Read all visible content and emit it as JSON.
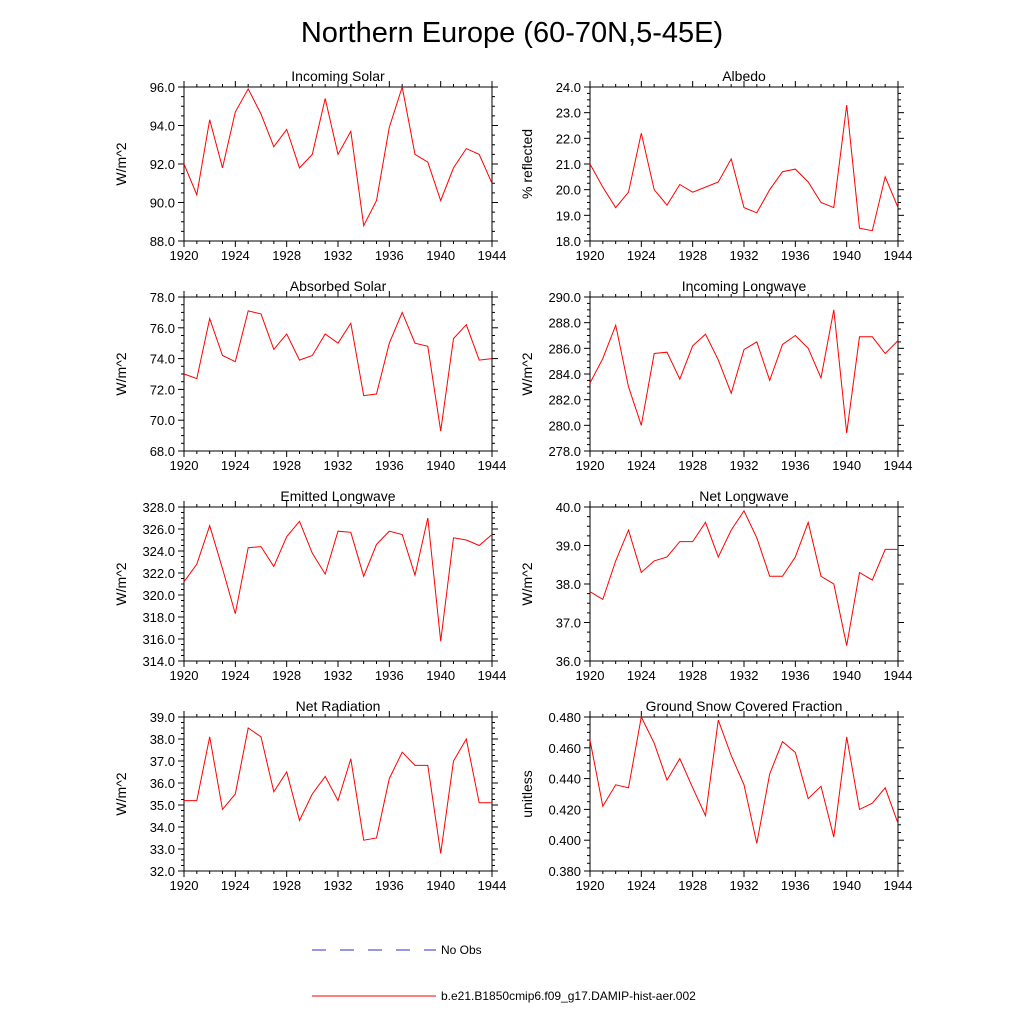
{
  "title": "Northern Europe (60-70N,5-45E)",
  "legend": [
    {
      "label": "No Obs",
      "color": "#3030c0",
      "dash": true
    },
    {
      "label": "b.e21.B1850cmip6.f09_g17.DAMIP-hist-aer.002",
      "color": "#ff0000",
      "dash": false
    }
  ],
  "colors": {
    "series": "#ff0000",
    "axis": "#000000"
  },
  "chart_data": [
    {
      "type": "line",
      "title": "Incoming Solar",
      "ylabel": "W/m^2",
      "xlim": [
        1920,
        1944
      ],
      "xticks": [
        1920,
        1924,
        1928,
        1932,
        1936,
        1940,
        1944
      ],
      "ylim": [
        88.0,
        96.0
      ],
      "yticks": [
        "88.0",
        "90.0",
        "92.0",
        "94.0",
        "96.0"
      ],
      "x": [
        1920,
        1921,
        1922,
        1923,
        1924,
        1925,
        1926,
        1927,
        1928,
        1929,
        1930,
        1931,
        1932,
        1933,
        1934,
        1935,
        1936,
        1937,
        1938,
        1939,
        1940,
        1941,
        1942,
        1943,
        1944
      ],
      "y": [
        92.0,
        90.4,
        94.3,
        91.8,
        94.7,
        95.9,
        94.6,
        92.9,
        93.8,
        91.8,
        92.5,
        95.4,
        92.5,
        93.7,
        88.8,
        90.1,
        93.9,
        96.0,
        92.5,
        92.1,
        90.1,
        91.8,
        92.8,
        92.5,
        91.0
      ]
    },
    {
      "type": "line",
      "title": "Albedo",
      "ylabel": "% reflected",
      "xlim": [
        1920,
        1944
      ],
      "xticks": [
        1920,
        1924,
        1928,
        1932,
        1936,
        1940,
        1944
      ],
      "ylim": [
        18.0,
        24.0
      ],
      "yticks": [
        "18.0",
        "19.0",
        "20.0",
        "21.0",
        "22.0",
        "23.0",
        "24.0"
      ],
      "x": [
        1920,
        1921,
        1922,
        1923,
        1924,
        1925,
        1926,
        1927,
        1928,
        1929,
        1930,
        1931,
        1932,
        1933,
        1934,
        1935,
        1936,
        1937,
        1938,
        1939,
        1940,
        1941,
        1942,
        1943,
        1944
      ],
      "y": [
        21.0,
        20.1,
        19.3,
        19.9,
        22.2,
        20.0,
        19.4,
        20.2,
        19.9,
        20.1,
        20.3,
        21.2,
        19.3,
        19.1,
        20.0,
        20.7,
        20.8,
        20.3,
        19.5,
        19.3,
        23.3,
        18.5,
        18.4,
        20.5,
        19.3
      ]
    },
    {
      "type": "line",
      "title": "Absorbed Solar",
      "ylabel": "W/m^2",
      "xlim": [
        1920,
        1944
      ],
      "xticks": [
        1920,
        1924,
        1928,
        1932,
        1936,
        1940,
        1944
      ],
      "ylim": [
        68.0,
        78.0
      ],
      "yticks": [
        "68.0",
        "70.0",
        "72.0",
        "74.0",
        "76.0",
        "78.0"
      ],
      "x": [
        1920,
        1921,
        1922,
        1923,
        1924,
        1925,
        1926,
        1927,
        1928,
        1929,
        1930,
        1931,
        1932,
        1933,
        1934,
        1935,
        1936,
        1937,
        1938,
        1939,
        1940,
        1941,
        1942,
        1943,
        1944
      ],
      "y": [
        73.0,
        72.7,
        76.6,
        74.2,
        73.8,
        77.1,
        76.9,
        74.6,
        75.6,
        73.9,
        74.2,
        75.6,
        75.0,
        76.3,
        71.6,
        71.7,
        75.0,
        77.0,
        75.0,
        74.8,
        69.3,
        75.3,
        76.2,
        73.9,
        74.0
      ]
    },
    {
      "type": "line",
      "title": "Incoming Longwave",
      "ylabel": "W/m^2",
      "xlim": [
        1920,
        1944
      ],
      "xticks": [
        1920,
        1924,
        1928,
        1932,
        1936,
        1940,
        1944
      ],
      "ylim": [
        278.0,
        290.0
      ],
      "yticks": [
        "278.0",
        "280.0",
        "282.0",
        "284.0",
        "286.0",
        "288.0",
        "290.0"
      ],
      "x": [
        1920,
        1921,
        1922,
        1923,
        1924,
        1925,
        1926,
        1927,
        1928,
        1929,
        1930,
        1931,
        1932,
        1933,
        1934,
        1935,
        1936,
        1937,
        1938,
        1939,
        1940,
        1941,
        1942,
        1943,
        1944
      ],
      "y": [
        283.3,
        285.2,
        287.8,
        283.0,
        280.0,
        285.6,
        285.7,
        283.6,
        286.2,
        287.1,
        285.1,
        282.5,
        285.9,
        286.5,
        283.5,
        286.3,
        287.0,
        286.0,
        283.7,
        289.0,
        279.4,
        286.9,
        286.9,
        285.6,
        286.6
      ]
    },
    {
      "type": "line",
      "title": "Emitted Longwave",
      "ylabel": "W/m^2",
      "xlim": [
        1920,
        1944
      ],
      "xticks": [
        1920,
        1924,
        1928,
        1932,
        1936,
        1940,
        1944
      ],
      "ylim": [
        314.0,
        328.0
      ],
      "yticks": [
        "314.0",
        "316.0",
        "318.0",
        "320.0",
        "322.0",
        "324.0",
        "326.0",
        "328.0"
      ],
      "x": [
        1920,
        1921,
        1922,
        1923,
        1924,
        1925,
        1926,
        1927,
        1928,
        1929,
        1930,
        1931,
        1932,
        1933,
        1934,
        1935,
        1936,
        1937,
        1938,
        1939,
        1940,
        1941,
        1942,
        1943,
        1944
      ],
      "y": [
        321.2,
        322.8,
        326.3,
        322.4,
        318.3,
        324.3,
        324.4,
        322.6,
        325.3,
        326.7,
        323.8,
        321.9,
        325.8,
        325.7,
        321.7,
        324.6,
        325.8,
        325.5,
        321.8,
        327.0,
        315.8,
        325.2,
        325.0,
        324.5,
        325.5
      ]
    },
    {
      "type": "line",
      "title": "Net Longwave",
      "ylabel": "W/m^2",
      "xlim": [
        1920,
        1944
      ],
      "xticks": [
        1920,
        1924,
        1928,
        1932,
        1936,
        1940,
        1944
      ],
      "ylim": [
        36.0,
        40.0
      ],
      "yticks": [
        "36.0",
        "37.0",
        "38.0",
        "39.0",
        "40.0"
      ],
      "x": [
        1920,
        1921,
        1922,
        1923,
        1924,
        1925,
        1926,
        1927,
        1928,
        1929,
        1930,
        1931,
        1932,
        1933,
        1934,
        1935,
        1936,
        1937,
        1938,
        1939,
        1940,
        1941,
        1942,
        1943,
        1944
      ],
      "y": [
        37.8,
        37.6,
        38.6,
        39.4,
        38.3,
        38.6,
        38.7,
        39.1,
        39.1,
        39.6,
        38.7,
        39.4,
        39.9,
        39.2,
        38.2,
        38.2,
        38.7,
        39.6,
        38.2,
        38.0,
        36.4,
        38.3,
        38.1,
        38.9,
        38.9
      ]
    },
    {
      "type": "line",
      "title": "Net Radiation",
      "ylabel": "W/m^2",
      "xlim": [
        1920,
        1944
      ],
      "xticks": [
        1920,
        1924,
        1928,
        1932,
        1936,
        1940,
        1944
      ],
      "ylim": [
        32.0,
        39.0
      ],
      "yticks": [
        "32.0",
        "33.0",
        "34.0",
        "35.0",
        "36.0",
        "37.0",
        "38.0",
        "39.0"
      ],
      "x": [
        1920,
        1921,
        1922,
        1923,
        1924,
        1925,
        1926,
        1927,
        1928,
        1929,
        1930,
        1931,
        1932,
        1933,
        1934,
        1935,
        1936,
        1937,
        1938,
        1939,
        1940,
        1941,
        1942,
        1943,
        1944
      ],
      "y": [
        35.2,
        35.2,
        38.1,
        34.8,
        35.5,
        38.5,
        38.1,
        35.6,
        36.5,
        34.3,
        35.5,
        36.3,
        35.2,
        37.1,
        33.4,
        33.5,
        36.2,
        37.4,
        36.8,
        36.8,
        32.8,
        37.0,
        38.0,
        35.1,
        35.1
      ]
    },
    {
      "type": "line",
      "title": "Ground Snow Covered Fraction",
      "ylabel": "unitless",
      "xlim": [
        1920,
        1944
      ],
      "xticks": [
        1920,
        1924,
        1928,
        1932,
        1936,
        1940,
        1944
      ],
      "ylim": [
        0.38,
        0.48
      ],
      "yticks": [
        "0.380",
        "0.400",
        "0.420",
        "0.440",
        "0.460",
        "0.480"
      ],
      "x": [
        1920,
        1921,
        1922,
        1923,
        1924,
        1925,
        1926,
        1927,
        1928,
        1929,
        1930,
        1931,
        1932,
        1933,
        1934,
        1935,
        1936,
        1937,
        1938,
        1939,
        1940,
        1941,
        1942,
        1943,
        1944
      ],
      "y": [
        0.465,
        0.422,
        0.436,
        0.434,
        0.48,
        0.463,
        0.439,
        0.453,
        0.434,
        0.416,
        0.478,
        0.455,
        0.436,
        0.398,
        0.443,
        0.464,
        0.457,
        0.427,
        0.435,
        0.402,
        0.467,
        0.42,
        0.424,
        0.434,
        0.411
      ]
    }
  ]
}
